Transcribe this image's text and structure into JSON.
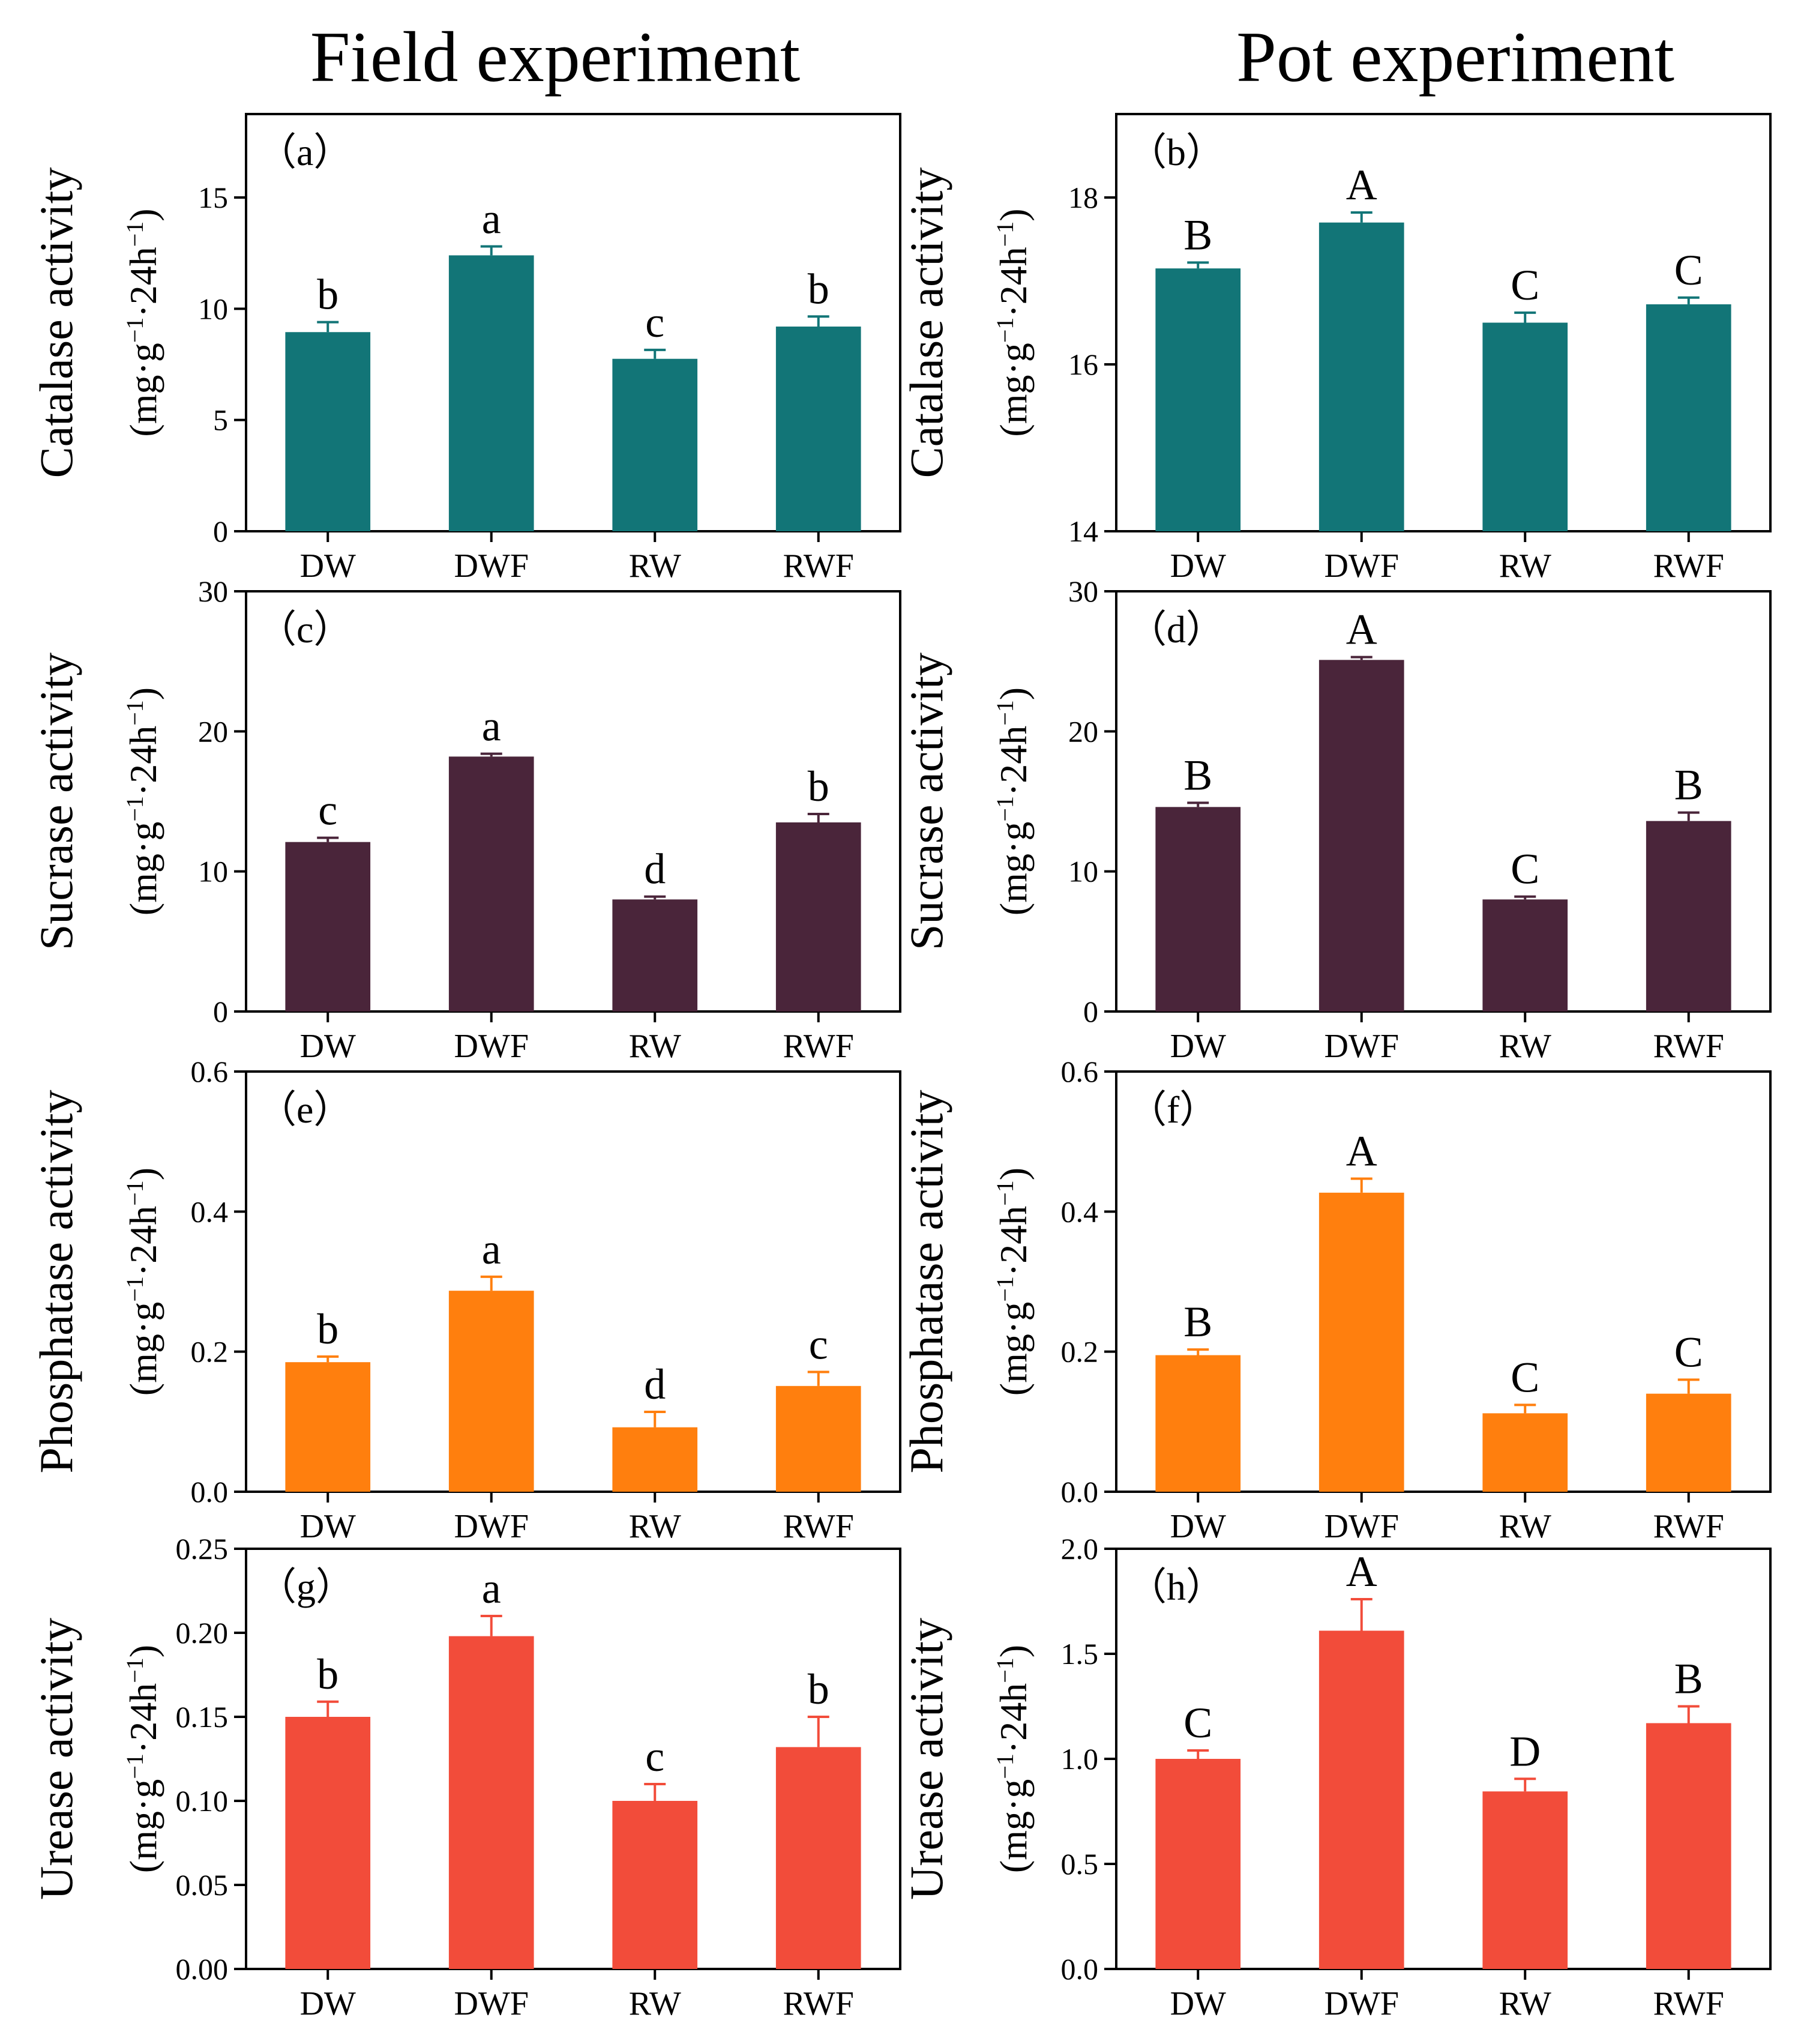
{
  "titles": [
    "Field experiment",
    "Pot experiment"
  ],
  "colors": {
    "catalase": "#127577",
    "sucrase": "#4a253a",
    "phosphatase": "#ff7f0e",
    "urease": "#f24c3a",
    "axis": "#000000"
  },
  "unit": {
    "open": "(mg·g",
    "sup1": "−1",
    "mid": "·24h",
    "sup2": "−1",
    "close": ")"
  },
  "chart_data": [
    {
      "id": "a",
      "panel_label": "（a）",
      "type": "bar",
      "color_key": "catalase",
      "ylabel": "Catalase activity",
      "categories": [
        "DW",
        "DWF",
        "RW",
        "RWF"
      ],
      "values": [
        8.95,
        12.4,
        7.75,
        9.2
      ],
      "errors": [
        0.45,
        0.4,
        0.4,
        0.45
      ],
      "labels": [
        "b",
        "a",
        "c",
        "b"
      ],
      "ylim": [
        0,
        18.75
      ],
      "yticks": [
        0,
        5,
        10,
        15
      ],
      "ytick_labels": [
        "0",
        "5",
        "10",
        "15"
      ]
    },
    {
      "id": "b",
      "panel_label": "（b）",
      "type": "bar",
      "color_key": "catalase",
      "ylabel": "Catalase activity",
      "categories": [
        "DW",
        "DWF",
        "RW",
        "RWF"
      ],
      "values": [
        17.15,
        17.7,
        16.5,
        16.72
      ],
      "errors": [
        0.07,
        0.12,
        0.12,
        0.08
      ],
      "labels": [
        "B",
        "A",
        "C",
        "C"
      ],
      "ylim": [
        14,
        19.0
      ],
      "yticks": [
        14,
        16,
        18
      ],
      "ytick_labels": [
        "14",
        "16",
        "18"
      ]
    },
    {
      "id": "c",
      "panel_label": "（c）",
      "type": "bar",
      "color_key": "sucrase",
      "ylabel": "Sucrase activity",
      "categories": [
        "DW",
        "DWF",
        "RW",
        "RWF"
      ],
      "values": [
        12.1,
        18.2,
        8.0,
        13.5
      ],
      "errors": [
        0.3,
        0.2,
        0.2,
        0.6
      ],
      "labels": [
        "c",
        "a",
        "d",
        "b"
      ],
      "ylim": [
        0,
        30
      ],
      "yticks": [
        0,
        10,
        20,
        30
      ],
      "ytick_labels": [
        "0",
        "10",
        "20",
        "30"
      ]
    },
    {
      "id": "d",
      "panel_label": "（d）",
      "type": "bar",
      "color_key": "sucrase",
      "ylabel": "Sucrase activity",
      "categories": [
        "DW",
        "DWF",
        "RW",
        "RWF"
      ],
      "values": [
        14.6,
        25.1,
        8.0,
        13.6
      ],
      "errors": [
        0.3,
        0.2,
        0.2,
        0.6
      ],
      "labels": [
        "B",
        "A",
        "C",
        "B"
      ],
      "ylim": [
        0,
        30
      ],
      "yticks": [
        0,
        10,
        20,
        30
      ],
      "ytick_labels": [
        "0",
        "10",
        "20",
        "30"
      ]
    },
    {
      "id": "e",
      "panel_label": "（e）",
      "type": "bar",
      "color_key": "phosphatase",
      "ylabel": "Phosphatase activity",
      "categories": [
        "DW",
        "DWF",
        "RW",
        "RWF"
      ],
      "values": [
        0.185,
        0.287,
        0.092,
        0.151
      ],
      "errors": [
        0.008,
        0.02,
        0.022,
        0.02
      ],
      "labels": [
        "b",
        "a",
        "d",
        "c"
      ],
      "ylim": [
        0,
        0.6
      ],
      "yticks": [
        0,
        0.2,
        0.4,
        0.6
      ],
      "ytick_labels": [
        "0.0",
        "0.2",
        "0.4",
        "0.6"
      ]
    },
    {
      "id": "f",
      "panel_label": "（f）",
      "type": "bar",
      "color_key": "phosphatase",
      "ylabel": "Phosphatase activity",
      "categories": [
        "DW",
        "DWF",
        "RW",
        "RWF"
      ],
      "values": [
        0.195,
        0.427,
        0.112,
        0.14
      ],
      "errors": [
        0.008,
        0.02,
        0.012,
        0.02
      ],
      "labels": [
        "B",
        "A",
        "C",
        "C"
      ],
      "ylim": [
        0,
        0.6
      ],
      "yticks": [
        0,
        0.2,
        0.4,
        0.6
      ],
      "ytick_labels": [
        "0.0",
        "0.2",
        "0.4",
        "0.6"
      ]
    },
    {
      "id": "g",
      "panel_label": "（g）",
      "type": "bar",
      "color_key": "urease",
      "ylabel": "Urease activity",
      "categories": [
        "DW",
        "DWF",
        "RW",
        "RWF"
      ],
      "values": [
        0.15,
        0.198,
        0.1,
        0.132
      ],
      "errors": [
        0.009,
        0.012,
        0.01,
        0.018
      ],
      "labels": [
        "b",
        "a",
        "c",
        "b"
      ],
      "ylim": [
        0,
        0.25
      ],
      "yticks": [
        0,
        0.05,
        0.1,
        0.15,
        0.2,
        0.25
      ],
      "ytick_labels": [
        "0.00",
        "0.05",
        "0.10",
        "0.15",
        "0.20",
        "0.25"
      ]
    },
    {
      "id": "h",
      "panel_label": "（h）",
      "type": "bar",
      "color_key": "urease",
      "ylabel": "Urease activity",
      "categories": [
        "DW",
        "DWF",
        "RW",
        "RWF"
      ],
      "values": [
        1.0,
        1.61,
        0.845,
        1.17
      ],
      "errors": [
        0.04,
        0.15,
        0.06,
        0.08
      ],
      "labels": [
        "C",
        "A",
        "D",
        "B"
      ],
      "ylim": [
        0,
        2.0
      ],
      "yticks": [
        0,
        0.5,
        1.0,
        1.5,
        2.0
      ],
      "ytick_labels": [
        "0.0",
        "0.5",
        "1.0",
        "1.5",
        "2.0"
      ]
    }
  ]
}
